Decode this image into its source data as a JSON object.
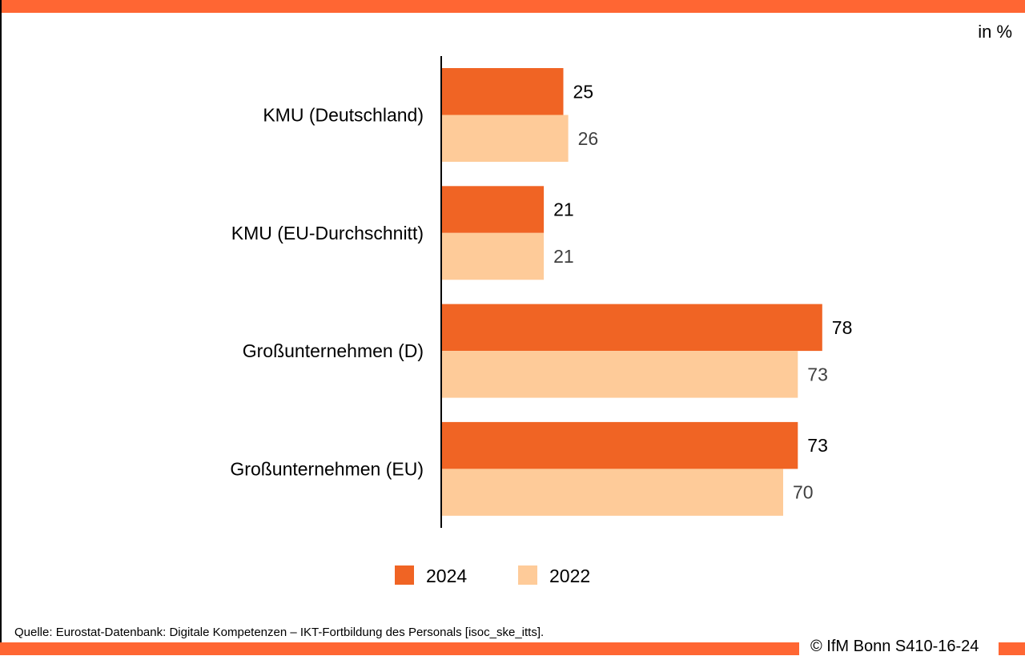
{
  "unit_label": "in %",
  "source": "Quelle: Eurostat-Datenbank: Digitale Kompetenzen – IKT-Fortbildung des Personals [isoc_ske_itts].",
  "copyright": "© IfM Bonn S410-16-24",
  "colors": {
    "accent": "#ff6633",
    "series_2024": "#f06424",
    "series_2022": "#fecb99",
    "label_2024": "#000000",
    "label_2022": "#404040"
  },
  "chart_data": {
    "type": "bar",
    "orientation": "horizontal",
    "categories": [
      "KMU (Deutschland)",
      "KMU (EU-Durchschnitt)",
      "Großunternehmen (D)",
      "Großunternehmen (EU)"
    ],
    "series": [
      {
        "name": "2024",
        "values": [
          25,
          21,
          78,
          73
        ]
      },
      {
        "name": "2022",
        "values": [
          26,
          21,
          73,
          70
        ]
      }
    ],
    "xlim": [
      0,
      100
    ],
    "grid": false,
    "legend": "bottom-center"
  }
}
